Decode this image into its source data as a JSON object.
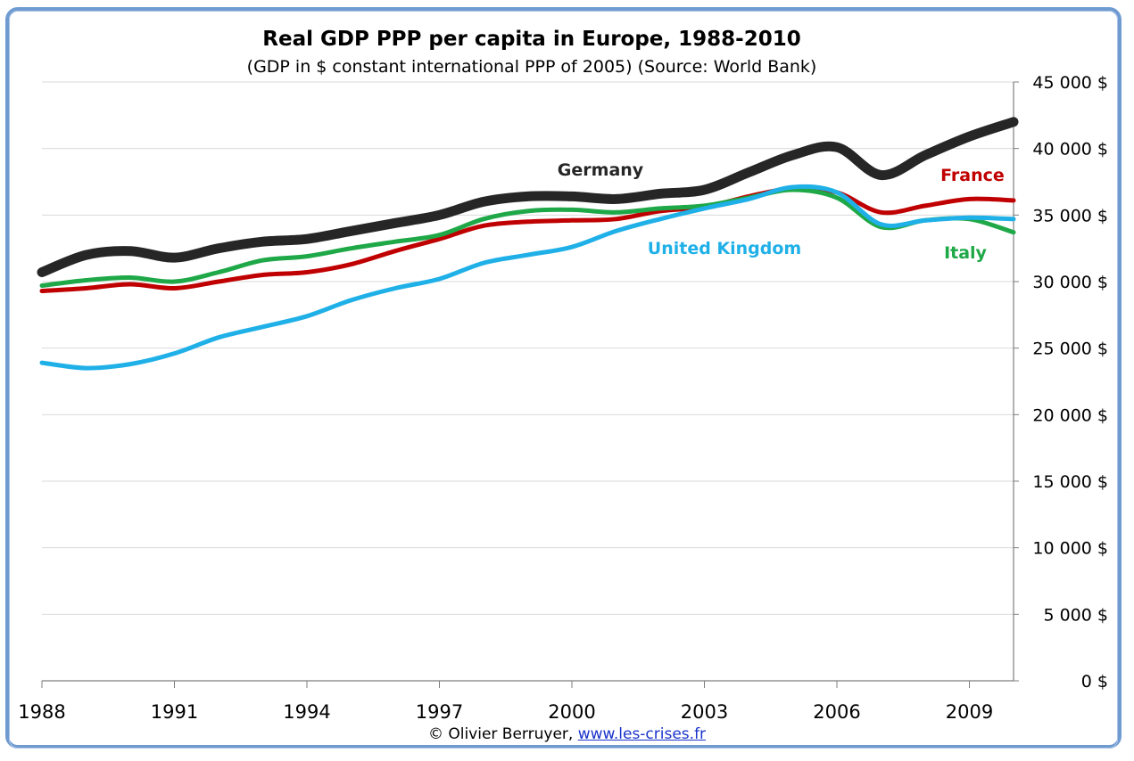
{
  "chart_data": {
    "type": "line",
    "title": "Real GDP PPP per capita in Europe, 1988-2010",
    "subtitle": "(GDP in $ constant international PPP of 2005) (Source: World Bank)",
    "xlabel": "",
    "ylabel": "",
    "x": [
      1988,
      1989,
      1990,
      1991,
      1992,
      1993,
      1994,
      1995,
      1996,
      1997,
      1998,
      1999,
      2000,
      2001,
      2002,
      2003,
      2004,
      2005,
      2006,
      2007,
      2008,
      2009,
      2010
    ],
    "xlim": [
      1988,
      2010
    ],
    "ylim": [
      0,
      45000
    ],
    "x_ticks": [
      "1988",
      "1991",
      "1994",
      "1997",
      "2000",
      "2003",
      "2006",
      "2009"
    ],
    "y_ticks": [
      "0 $",
      "5 000 $",
      "10 000 $",
      "15 000 $",
      "20 000 $",
      "25 000 $",
      "30 000 $",
      "35 000 $",
      "40 000 $",
      "45 000 $"
    ],
    "grid": true,
    "y_axis_side": "right",
    "series": [
      {
        "name": "Germany",
        "color": "#262626",
        "values": [
          30700,
          32000,
          32300,
          31800,
          32500,
          33000,
          33200,
          33800,
          34400,
          35000,
          36000,
          36400,
          36400,
          36200,
          36600,
          36900,
          38200,
          39500,
          40100,
          38000,
          39500,
          40900,
          42000
        ]
      },
      {
        "name": "France",
        "color": "#c00000",
        "values": [
          29300,
          29500,
          29800,
          29500,
          30000,
          30500,
          30700,
          31300,
          32300,
          33200,
          34200,
          34500,
          34600,
          34700,
          35300,
          35600,
          36400,
          37000,
          36700,
          35200,
          35700,
          36200,
          36100
        ]
      },
      {
        "name": "United Kingdom",
        "color": "#1fb0e8",
        "values": [
          23900,
          23500,
          23800,
          24600,
          25800,
          26600,
          27400,
          28600,
          29500,
          30200,
          31400,
          32000,
          32600,
          33800,
          34700,
          35500,
          36200,
          37100,
          36700,
          34300,
          34600,
          34800,
          34700
        ]
      },
      {
        "name": "Italy",
        "color": "#1ea847",
        "values": [
          29700,
          30100,
          30300,
          30000,
          30700,
          31600,
          31900,
          32500,
          33000,
          33500,
          34700,
          35300,
          35400,
          35200,
          35500,
          35700,
          36300,
          36900,
          36300,
          34100,
          34600,
          34700,
          33700
        ]
      }
    ],
    "annotations": [
      {
        "text": "Germany",
        "series": "Germany"
      },
      {
        "text": "France",
        "series": "France"
      },
      {
        "text": "United Kingdom",
        "series": "United Kingdom"
      },
      {
        "text": "Italy",
        "series": "Italy"
      }
    ]
  },
  "footer": {
    "credit": "© Olivier Berruyer,",
    "link_text": "www.les-crises.fr"
  }
}
